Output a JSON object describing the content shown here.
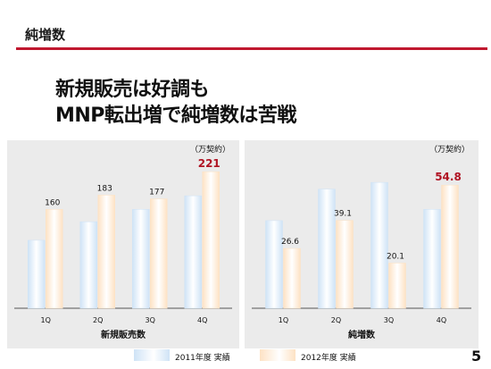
{
  "section": {
    "title": "純増数"
  },
  "headline": {
    "line1": "新規販売は好調も",
    "line2": "MNP転出増で純増数は苦戦"
  },
  "page_number": "5",
  "colors": {
    "accent_red": "#c0182f",
    "series_2011": "#cfe3f6",
    "series_2012": "#fde2c4",
    "highlight_label": "#b01424",
    "panel_bg": "#ebebeb"
  },
  "legend": {
    "items": [
      {
        "label": "2011年度 実績",
        "color": "#cfe3f6"
      },
      {
        "label": "2012年度 実績",
        "color": "#fde2c4"
      }
    ]
  },
  "chart_data": [
    {
      "type": "bar",
      "title": "",
      "xlabel": "新規販売数",
      "unit": "（万契約）",
      "categories": [
        "1Q",
        "2Q",
        "3Q",
        "4Q"
      ],
      "ylim": [
        0,
        240
      ],
      "grid": false,
      "series": [
        {
          "name": "2011年度 実績",
          "values": [
            110,
            140,
            160,
            182
          ],
          "show_labels": false
        },
        {
          "name": "2012年度 実績",
          "values": [
            160,
            183,
            177,
            221
          ],
          "show_labels": true,
          "highlight_index": 3
        }
      ]
    },
    {
      "type": "bar",
      "title": "",
      "xlabel": "純増数",
      "unit": "（万契約）",
      "categories": [
        "1Q",
        "2Q",
        "3Q",
        "4Q"
      ],
      "ylim": [
        0,
        66
      ],
      "grid": false,
      "series": [
        {
          "name": "2011年度 実績",
          "values": [
            39,
            53,
            56,
            44
          ],
          "show_labels": false
        },
        {
          "name": "2012年度 実績",
          "values": [
            26.6,
            39.1,
            20.1,
            54.8
          ],
          "show_labels": true,
          "highlight_index": 3
        }
      ]
    }
  ]
}
